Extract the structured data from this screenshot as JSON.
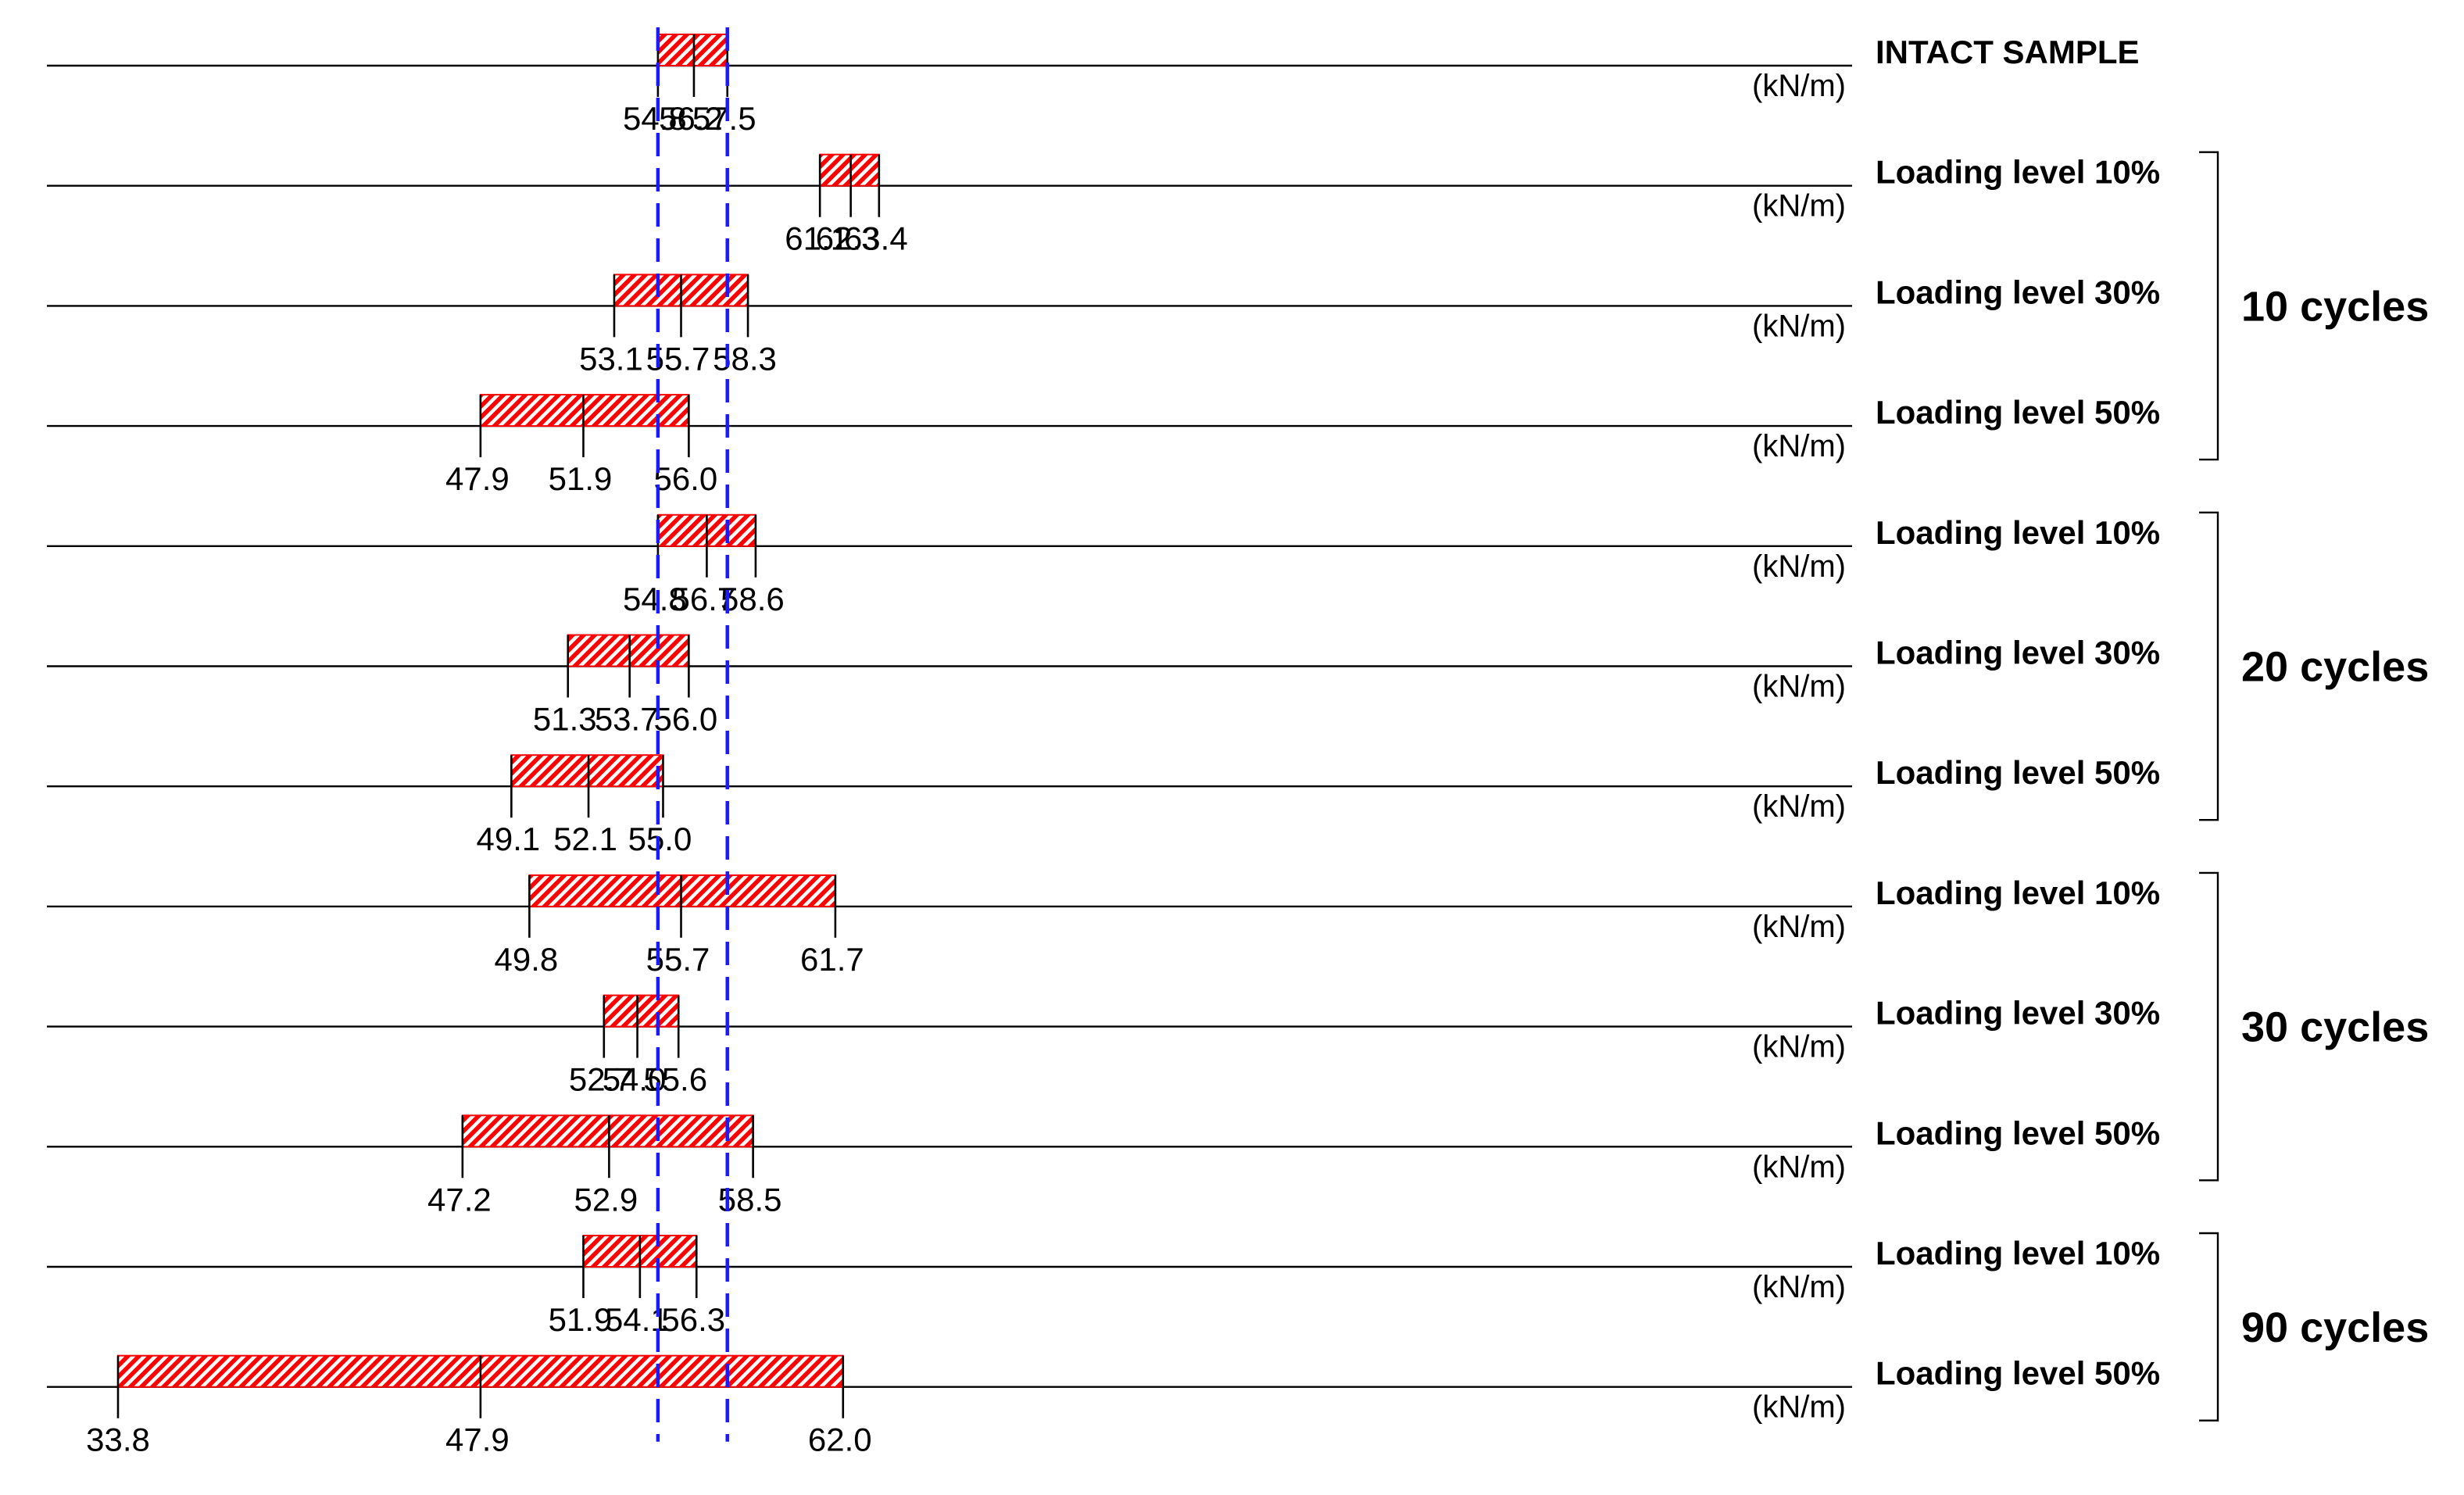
{
  "chart_data": {
    "type": "range-bar",
    "title": "",
    "unit": "(kN/m)",
    "reference_lines": {
      "values": [
        54.8,
        57.5
      ],
      "color": "#1a1aff",
      "style": "dashed"
    },
    "bar_color": "#ff0000",
    "rows": [
      {
        "label": "INTACT SAMPLE",
        "group": "",
        "min": 54.8,
        "mean": 56.2,
        "max": 57.5,
        "min_label": "54.8",
        "mean_label": "56.2",
        "max_label": "57.5"
      },
      {
        "label": "Loading level 10%",
        "group": "10 cycles",
        "min": 61.1,
        "mean": 62.3,
        "max": 63.4,
        "min_label": "61.1",
        "mean_label": "62.3",
        "max_label": "63.4"
      },
      {
        "label": "Loading level 30%",
        "group": "10 cycles",
        "min": 53.1,
        "mean": 55.7,
        "max": 58.3,
        "min_label": "53.1",
        "mean_label": "55.7",
        "max_label": "58.3"
      },
      {
        "label": "Loading level 50%",
        "group": "10 cycles",
        "min": 47.9,
        "mean": 51.9,
        "max": 56.0,
        "min_label": "47.9",
        "mean_label": "51.9",
        "max_label": "56.0"
      },
      {
        "label": "Loading level 10%",
        "group": "20 cycles",
        "min": 54.8,
        "mean": 56.7,
        "max": 58.6,
        "min_label": "54.8",
        "mean_label": "56.7",
        "max_label": "58.6"
      },
      {
        "label": "Loading level 30%",
        "group": "20 cycles",
        "min": 51.3,
        "mean": 53.7,
        "max": 56.0,
        "min_label": "51.3",
        "mean_label": "53.7",
        "max_label": "56.0"
      },
      {
        "label": "Loading level 50%",
        "group": "20 cycles",
        "min": 49.1,
        "mean": 52.1,
        "max": 55.0,
        "min_label": "49.1",
        "mean_label": "52.1",
        "max_label": "55.0"
      },
      {
        "label": "Loading level 10%",
        "group": "30 cycles",
        "min": 49.8,
        "mean": 55.7,
        "max": 61.7,
        "min_label": "49.8",
        "mean_label": "55.7",
        "max_label": "61.7"
      },
      {
        "label": "Loading level 30%",
        "group": "30 cycles",
        "min": 52.7,
        "mean": 54.0,
        "max": 55.6,
        "min_label": "52.7",
        "mean_label": "54.0",
        "max_label": "55.6"
      },
      {
        "label": "Loading level 50%",
        "group": "30 cycles",
        "min": 47.2,
        "mean": 52.9,
        "max": 58.5,
        "min_label": "47.2",
        "mean_label": "52.9",
        "max_label": "58.5"
      },
      {
        "label": "Loading level 10%",
        "group": "90 cycles",
        "min": 51.9,
        "mean": 54.1,
        "max": 56.3,
        "min_label": "51.9",
        "mean_label": "54.1",
        "max_label": "56.3"
      },
      {
        "label": "Loading level 50%",
        "group": "90 cycles",
        "min": 33.8,
        "mean": 47.9,
        "max": 62.0,
        "min_label": "33.8",
        "mean_label": "47.9",
        "max_label": "62.0"
      }
    ],
    "groups": [
      {
        "label": "10 cycles",
        "first_row": 1,
        "last_row": 3
      },
      {
        "label": "20 cycles",
        "first_row": 4,
        "last_row": 6
      },
      {
        "label": "30 cycles",
        "first_row": 7,
        "last_row": 9
      },
      {
        "label": "90 cycles",
        "first_row": 10,
        "last_row": 11
      }
    ]
  }
}
